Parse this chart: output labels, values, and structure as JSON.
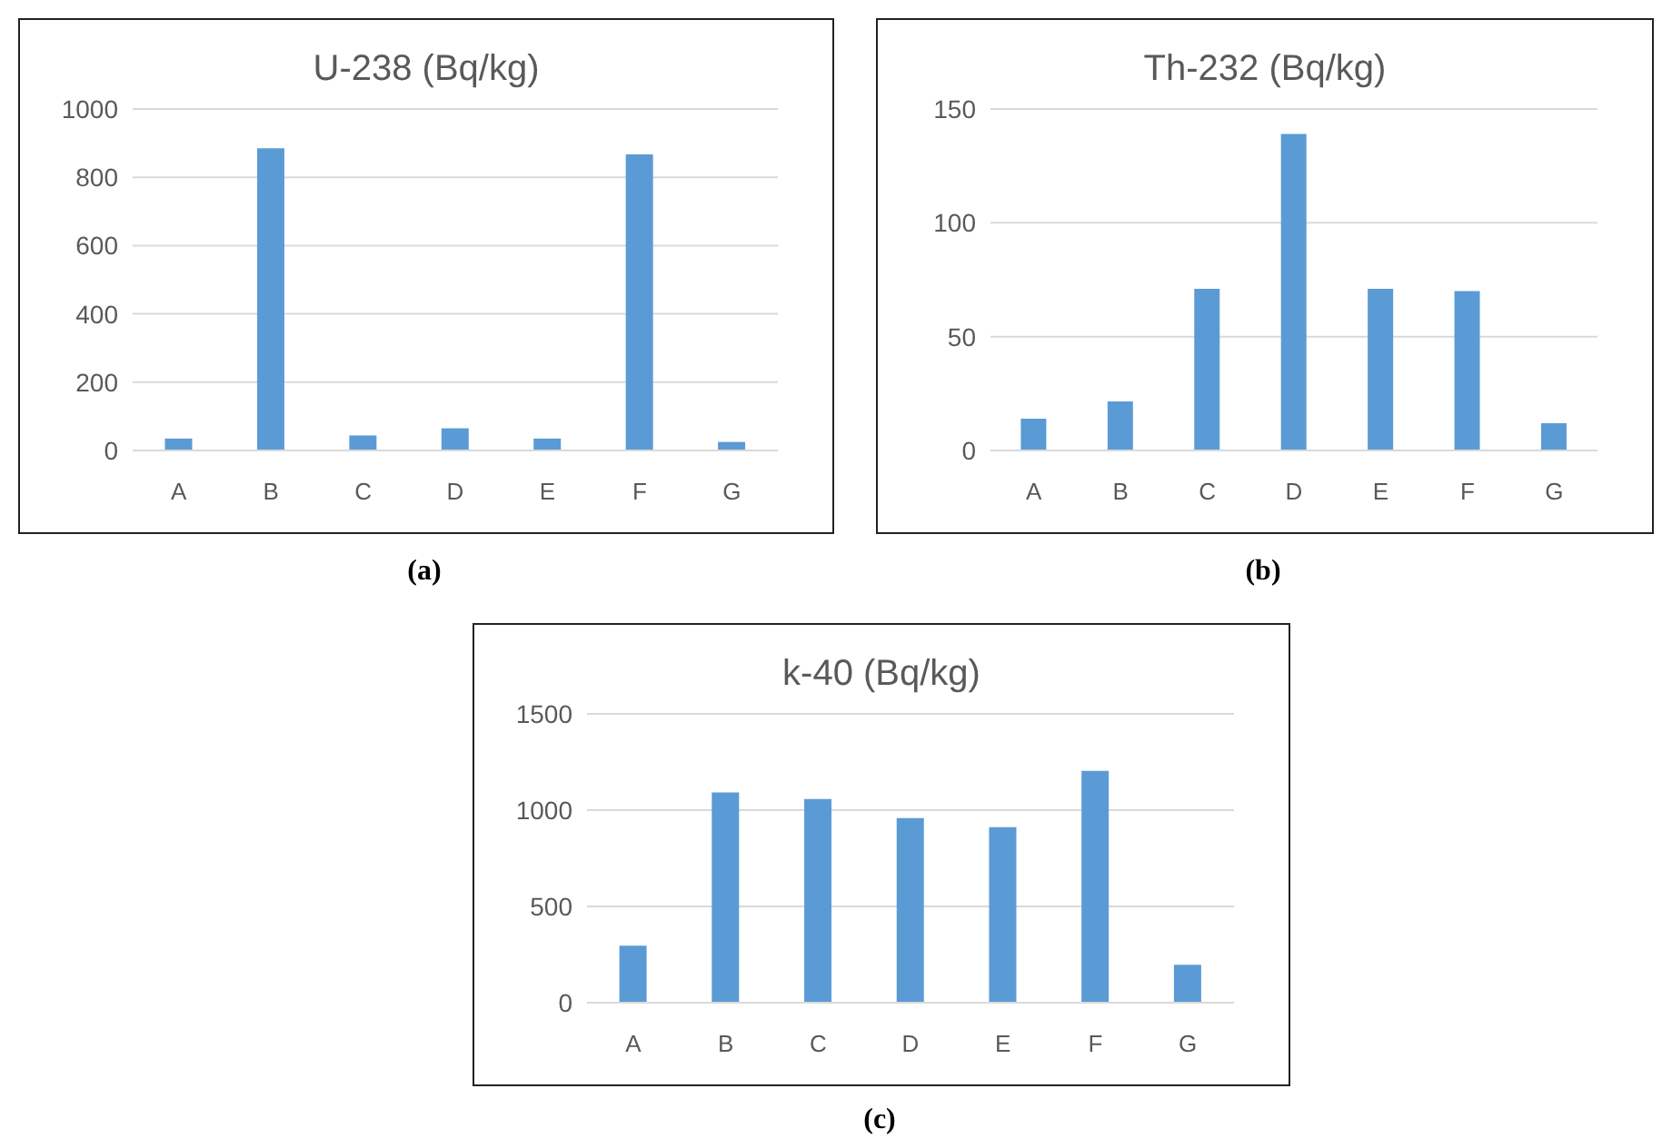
{
  "chart_data": [
    {
      "type": "bar",
      "title": "U-238 (Bq/kg)",
      "categories": [
        "A",
        "B",
        "C",
        "D",
        "E",
        "F",
        "G"
      ],
      "values": [
        35,
        885,
        44,
        65,
        35,
        867,
        25
      ],
      "color": "#5b9bd5",
      "ylim": [
        0,
        1000
      ],
      "yticks": [
        0,
        200,
        400,
        600,
        800,
        1000
      ],
      "grid": "y",
      "annotations": [
        "(a)"
      ]
    },
    {
      "type": "bar",
      "title": "Th-232 (Bq/kg)",
      "categories": [
        "A",
        "B",
        "C",
        "D",
        "E",
        "F",
        "G"
      ],
      "values": [
        14,
        21.5,
        71,
        139,
        71,
        70,
        12
      ],
      "color": "#5b9bd5",
      "ylim": [
        0,
        150
      ],
      "yticks": [
        0,
        50,
        100,
        150
      ],
      "grid": "y",
      "annotations": [
        "(b)"
      ]
    },
    {
      "type": "bar",
      "title": "k-40 (Bq/kg)",
      "categories": [
        "A",
        "B",
        "C",
        "D",
        "E",
        "F",
        "G"
      ],
      "values": [
        296,
        1092,
        1058,
        959,
        912,
        1204,
        197
      ],
      "color": "#5b9bd5",
      "ylim": [
        0,
        1500
      ],
      "yticks": [
        0,
        500,
        1000,
        1500
      ],
      "grid": "y",
      "annotations": [
        "(c)"
      ]
    }
  ]
}
